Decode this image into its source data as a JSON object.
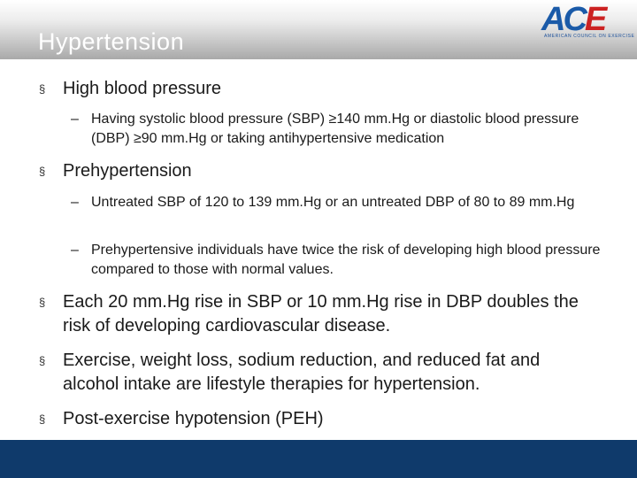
{
  "slide": {
    "title": "Hypertension",
    "logo": {
      "mark": "ACE",
      "tagline": "AMERICAN COUNCIL ON EXERCISE"
    },
    "bullet_symbol": "§",
    "dash_symbol": "–",
    "bullets": [
      {
        "text": "High blood pressure",
        "sub": [
          "Having systolic blood pressure (SBP) ≥140 mm.Hg or diastolic blood pressure (DBP) ≥90 mm.Hg or taking antihypertensive medication"
        ]
      },
      {
        "text": "Prehypertension",
        "sub": [
          "Untreated SBP of 120 to 139 mm.Hg or an untreated DBP of 80 to 89 mm.Hg",
          "Prehypertensive individuals have twice the risk of developing high blood pressure compared to those with normal values."
        ]
      },
      {
        "text": "Each 20 mm.Hg rise in SBP or 10 mm.Hg rise in DBP doubles the risk of developing cardiovascular disease.",
        "sub": []
      },
      {
        "text": "Exercise, weight loss, sodium reduction, and reduced fat and alcohol intake are lifestyle therapies for hypertension.",
        "sub": []
      },
      {
        "text": "Post-exercise hypotension (PEH)",
        "sub": []
      }
    ]
  }
}
